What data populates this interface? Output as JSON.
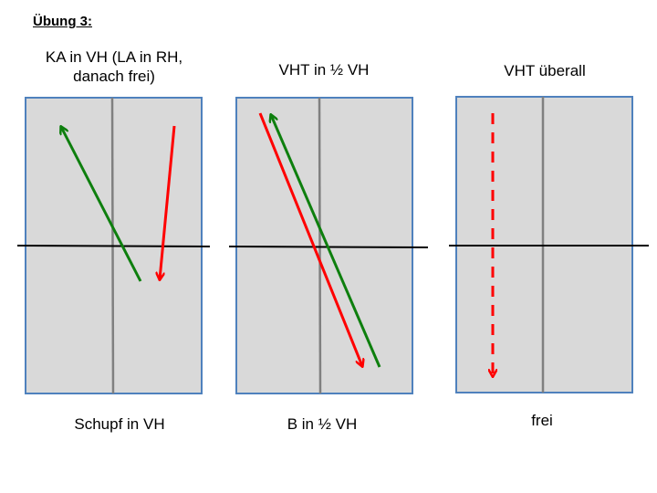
{
  "heading": "Übung 3:",
  "colors": {
    "table_fill": "#d9d9d9",
    "table_border": "#4f81bd",
    "center_line": "#808080",
    "net_line": "#000000",
    "arrow_green": "#0e7f0e",
    "arrow_red": "#ff0000"
  },
  "panels": [
    {
      "title_line1": "KA in VH (LA in RH,",
      "title_line2": "danach frei)",
      "caption": "Schupf in VH",
      "arrows": [
        "green solid arrow",
        "red solid arrow"
      ]
    },
    {
      "title_line1": "VHT in ½ VH",
      "title_line2": "",
      "caption": "B in ½ VH",
      "arrows": [
        "red solid arrow",
        "green solid arrow"
      ]
    },
    {
      "title_line1": "VHT überall",
      "title_line2": "",
      "caption": "frei",
      "arrows": [
        "red dashed arrow"
      ]
    }
  ]
}
